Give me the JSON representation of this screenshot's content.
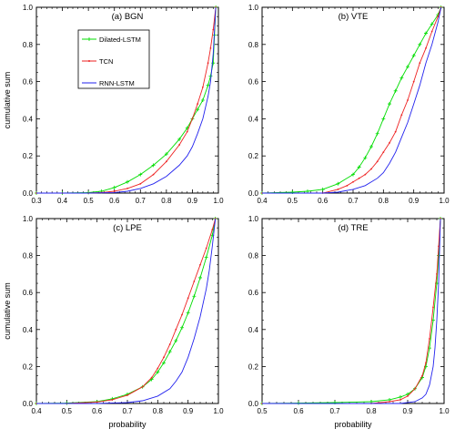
{
  "chart_data": [
    {
      "type": "line",
      "title": "(a) BGN",
      "xlabel": "",
      "ylabel": "cumulative sum",
      "xlim": [
        0.3,
        1.0
      ],
      "ylim": [
        0.0,
        1.0
      ],
      "xticks": [
        "0.3",
        "0.4",
        "0.5",
        "0.6",
        "0.7",
        "0.8",
        "0.9",
        "1.0"
      ],
      "yticks": [
        "0.0",
        "0.2",
        "0.4",
        "0.6",
        "0.8",
        "1.0"
      ],
      "legend_placement": "top-left",
      "series": [
        {
          "name": "Dilated-LSTM",
          "color": "#00dd00",
          "marker": "plus",
          "x": [
            0.3,
            0.4,
            0.5,
            0.55,
            0.6,
            0.65,
            0.7,
            0.75,
            0.8,
            0.85,
            0.88,
            0.9,
            0.92,
            0.94,
            0.96,
            0.97,
            0.98,
            0.985,
            0.99
          ],
          "y": [
            0.0,
            0.0,
            0.003,
            0.01,
            0.03,
            0.06,
            0.1,
            0.15,
            0.21,
            0.29,
            0.35,
            0.4,
            0.45,
            0.5,
            0.58,
            0.63,
            0.7,
            0.85,
            1.0
          ]
        },
        {
          "name": "TCN",
          "color": "#ee2222",
          "marker": "dot",
          "x": [
            0.3,
            0.4,
            0.5,
            0.55,
            0.6,
            0.65,
            0.7,
            0.75,
            0.8,
            0.85,
            0.88,
            0.9,
            0.92,
            0.94,
            0.96,
            0.97,
            0.98,
            0.99
          ],
          "y": [
            0.0,
            0.0,
            0.0,
            0.003,
            0.01,
            0.025,
            0.05,
            0.1,
            0.17,
            0.26,
            0.33,
            0.4,
            0.48,
            0.57,
            0.7,
            0.78,
            0.88,
            1.0
          ]
        },
        {
          "name": "RNN-LSTM",
          "color": "#2222ee",
          "marker": "none",
          "x": [
            0.3,
            0.5,
            0.6,
            0.65,
            0.7,
            0.75,
            0.8,
            0.85,
            0.88,
            0.9,
            0.92,
            0.94,
            0.96,
            0.97,
            0.98,
            0.99
          ],
          "y": [
            0.0,
            0.0,
            0.003,
            0.01,
            0.025,
            0.05,
            0.09,
            0.15,
            0.2,
            0.25,
            0.32,
            0.4,
            0.52,
            0.6,
            0.75,
            1.0
          ]
        }
      ]
    },
    {
      "type": "line",
      "title": "(b) VTE",
      "xlabel": "",
      "ylabel": "",
      "xlim": [
        0.4,
        1.0
      ],
      "ylim": [
        0.0,
        1.0
      ],
      "xticks": [
        "0.4",
        "0.5",
        "0.6",
        "0.7",
        "0.8",
        "0.9",
        "1.0"
      ],
      "yticks": [
        "0.0",
        "0.2",
        "0.4",
        "0.6",
        "0.8",
        "1.0"
      ],
      "series": [
        {
          "name": "Dilated-LSTM",
          "color": "#00dd00",
          "marker": "plus",
          "x": [
            0.4,
            0.5,
            0.55,
            0.6,
            0.65,
            0.7,
            0.72,
            0.74,
            0.76,
            0.78,
            0.8,
            0.82,
            0.84,
            0.86,
            0.88,
            0.9,
            0.92,
            0.94,
            0.96,
            0.98,
            0.99
          ],
          "y": [
            0.0,
            0.005,
            0.01,
            0.02,
            0.05,
            0.1,
            0.14,
            0.19,
            0.25,
            0.32,
            0.4,
            0.48,
            0.55,
            0.62,
            0.68,
            0.74,
            0.8,
            0.86,
            0.91,
            0.96,
            1.0
          ]
        },
        {
          "name": "TCN",
          "color": "#ee2222",
          "marker": "dot",
          "x": [
            0.4,
            0.6,
            0.65,
            0.68,
            0.7,
            0.72,
            0.74,
            0.76,
            0.78,
            0.8,
            0.82,
            0.84,
            0.86,
            0.88,
            0.9,
            0.92,
            0.94,
            0.96,
            0.98,
            0.99
          ],
          "y": [
            0.0,
            0.0,
            0.02,
            0.04,
            0.06,
            0.08,
            0.1,
            0.13,
            0.17,
            0.22,
            0.27,
            0.33,
            0.42,
            0.5,
            0.6,
            0.7,
            0.78,
            0.87,
            0.95,
            1.0
          ]
        },
        {
          "name": "RNN-LSTM",
          "color": "#2222ee",
          "marker": "none",
          "x": [
            0.4,
            0.6,
            0.65,
            0.7,
            0.74,
            0.78,
            0.8,
            0.82,
            0.84,
            0.86,
            0.88,
            0.9,
            0.92,
            0.94,
            0.96,
            0.98,
            0.99
          ],
          "y": [
            0.0,
            0.0,
            0.005,
            0.02,
            0.04,
            0.08,
            0.11,
            0.16,
            0.22,
            0.3,
            0.38,
            0.48,
            0.58,
            0.7,
            0.8,
            0.92,
            1.0
          ]
        }
      ]
    },
    {
      "type": "line",
      "title": "(c) LPE",
      "xlabel": "probability",
      "ylabel": "cumulative sum",
      "xlim": [
        0.4,
        1.0
      ],
      "ylim": [
        0.0,
        1.0
      ],
      "xticks": [
        "0.4",
        "0.5",
        "0.6",
        "0.7",
        "0.8",
        "0.9",
        "1.0"
      ],
      "yticks": [
        "0.0",
        "0.2",
        "0.4",
        "0.6",
        "0.8",
        "1.0"
      ],
      "series": [
        {
          "name": "Dilated-LSTM",
          "color": "#00dd00",
          "marker": "plus",
          "x": [
            0.4,
            0.5,
            0.6,
            0.65,
            0.7,
            0.75,
            0.78,
            0.8,
            0.82,
            0.84,
            0.86,
            0.88,
            0.9,
            0.92,
            0.94,
            0.96,
            0.98,
            0.99
          ],
          "y": [
            0.0,
            0.002,
            0.01,
            0.025,
            0.05,
            0.09,
            0.13,
            0.17,
            0.22,
            0.28,
            0.34,
            0.41,
            0.49,
            0.58,
            0.68,
            0.79,
            0.91,
            1.0
          ]
        },
        {
          "name": "TCN",
          "color": "#ee2222",
          "marker": "dot",
          "x": [
            0.4,
            0.5,
            0.6,
            0.65,
            0.7,
            0.75,
            0.78,
            0.8,
            0.82,
            0.84,
            0.86,
            0.88,
            0.9,
            0.92,
            0.94,
            0.96,
            0.98,
            0.99
          ],
          "y": [
            0.0,
            0.0,
            0.008,
            0.02,
            0.045,
            0.09,
            0.14,
            0.19,
            0.25,
            0.32,
            0.4,
            0.48,
            0.57,
            0.66,
            0.75,
            0.84,
            0.94,
            1.0
          ]
        },
        {
          "name": "RNN-LSTM",
          "color": "#2222ee",
          "marker": "none",
          "x": [
            0.4,
            0.6,
            0.7,
            0.75,
            0.8,
            0.84,
            0.86,
            0.88,
            0.9,
            0.92,
            0.94,
            0.96,
            0.97,
            0.98,
            0.99
          ],
          "y": [
            0.0,
            0.0,
            0.005,
            0.015,
            0.04,
            0.08,
            0.12,
            0.17,
            0.25,
            0.35,
            0.47,
            0.62,
            0.72,
            0.85,
            1.0
          ]
        }
      ]
    },
    {
      "type": "line",
      "title": "(d) TRE",
      "xlabel": "probability",
      "ylabel": "",
      "xlim": [
        0.5,
        1.0
      ],
      "ylim": [
        0.0,
        1.0
      ],
      "xticks": [
        "0.5",
        "0.6",
        "0.7",
        "0.8",
        "0.9",
        "1.0"
      ],
      "yticks": [
        "0.0",
        "0.2",
        "0.4",
        "0.6",
        "0.8",
        "1.0"
      ],
      "series": [
        {
          "name": "Dilated-LSTM",
          "color": "#00dd00",
          "marker": "plus",
          "x": [
            0.5,
            0.6,
            0.7,
            0.8,
            0.85,
            0.88,
            0.9,
            0.92,
            0.94,
            0.95,
            0.96,
            0.97,
            0.98,
            0.985,
            0.99
          ],
          "y": [
            0.0,
            0.002,
            0.005,
            0.01,
            0.02,
            0.035,
            0.05,
            0.08,
            0.14,
            0.2,
            0.3,
            0.45,
            0.65,
            0.8,
            1.0
          ]
        },
        {
          "name": "TCN",
          "color": "#ee2222",
          "marker": "dot",
          "x": [
            0.5,
            0.8,
            0.85,
            0.88,
            0.9,
            0.92,
            0.94,
            0.95,
            0.96,
            0.97,
            0.98,
            0.985,
            0.99
          ],
          "y": [
            0.0,
            0.0,
            0.01,
            0.02,
            0.04,
            0.08,
            0.15,
            0.22,
            0.35,
            0.52,
            0.7,
            0.85,
            1.0
          ]
        },
        {
          "name": "RNN-LSTM",
          "color": "#2222ee",
          "marker": "none",
          "x": [
            0.5,
            0.88,
            0.92,
            0.94,
            0.95,
            0.96,
            0.97,
            0.975,
            0.98,
            0.985,
            0.99
          ],
          "y": [
            0.0,
            0.0,
            0.01,
            0.03,
            0.05,
            0.1,
            0.2,
            0.3,
            0.45,
            0.65,
            1.0
          ]
        }
      ]
    }
  ]
}
